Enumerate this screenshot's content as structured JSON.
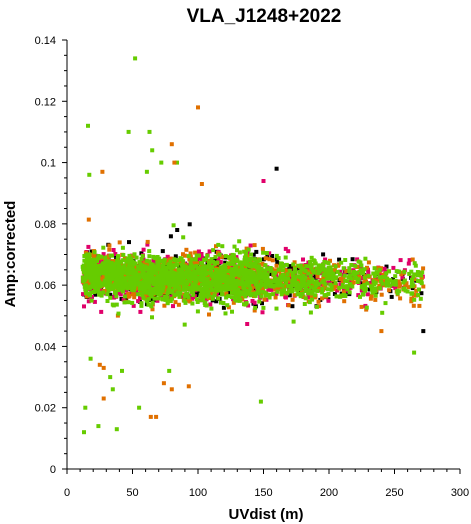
{
  "chart_data": {
    "type": "scatter",
    "title": "VLA_J1248+2022",
    "xlabel": "UVdist (m)",
    "ylabel": "Amp:corrected",
    "xlim": [
      0,
      300
    ],
    "ylim": [
      0,
      0.14
    ],
    "xticks": [
      "0",
      "50",
      "100",
      "150",
      "200",
      "250",
      "300"
    ],
    "yticks": [
      "0",
      "0.02",
      "0.04",
      "0.06",
      "0.08",
      "0.1",
      "0.12",
      "0.14"
    ],
    "series_colors": [
      "#000000",
      "#e0006a",
      "#e07000",
      "#66cc00"
    ],
    "grid": false,
    "legend": "none",
    "outliers": [
      {
        "x": 52,
        "y": 0.134,
        "color": "#66cc00"
      },
      {
        "x": 100,
        "y": 0.118,
        "color": "#e07000"
      },
      {
        "x": 16,
        "y": 0.112,
        "color": "#66cc00"
      },
      {
        "x": 47,
        "y": 0.11,
        "color": "#66cc00"
      },
      {
        "x": 63,
        "y": 0.11,
        "color": "#66cc00"
      },
      {
        "x": 80,
        "y": 0.106,
        "color": "#e07000"
      },
      {
        "x": 65,
        "y": 0.104,
        "color": "#66cc00"
      },
      {
        "x": 84,
        "y": 0.1,
        "color": "#66cc00"
      },
      {
        "x": 82,
        "y": 0.1,
        "color": "#e07000"
      },
      {
        "x": 72,
        "y": 0.1,
        "color": "#66cc00"
      },
      {
        "x": 27,
        "y": 0.097,
        "color": "#e07000"
      },
      {
        "x": 61,
        "y": 0.097,
        "color": "#66cc00"
      },
      {
        "x": 17,
        "y": 0.096,
        "color": "#66cc00"
      },
      {
        "x": 103,
        "y": 0.093,
        "color": "#e07000"
      },
      {
        "x": 160,
        "y": 0.098,
        "color": "#000000"
      },
      {
        "x": 150,
        "y": 0.094,
        "color": "#e0006a"
      },
      {
        "x": 14,
        "y": 0.02,
        "color": "#66cc00"
      },
      {
        "x": 13,
        "y": 0.012,
        "color": "#66cc00"
      },
      {
        "x": 24,
        "y": 0.014,
        "color": "#66cc00"
      },
      {
        "x": 38,
        "y": 0.013,
        "color": "#66cc00"
      },
      {
        "x": 64,
        "y": 0.017,
        "color": "#e07000"
      },
      {
        "x": 68,
        "y": 0.017,
        "color": "#e07000"
      },
      {
        "x": 55,
        "y": 0.02,
        "color": "#66cc00"
      },
      {
        "x": 28,
        "y": 0.023,
        "color": "#e07000"
      },
      {
        "x": 35,
        "y": 0.026,
        "color": "#66cc00"
      },
      {
        "x": 80,
        "y": 0.026,
        "color": "#e07000"
      },
      {
        "x": 93,
        "y": 0.027,
        "color": "#e07000"
      },
      {
        "x": 74,
        "y": 0.028,
        "color": "#e07000"
      },
      {
        "x": 33,
        "y": 0.03,
        "color": "#66cc00"
      },
      {
        "x": 148,
        "y": 0.022,
        "color": "#66cc00"
      },
      {
        "x": 28,
        "y": 0.033,
        "color": "#e07000"
      },
      {
        "x": 42,
        "y": 0.032,
        "color": "#66cc00"
      },
      {
        "x": 78,
        "y": 0.032,
        "color": "#66cc00"
      },
      {
        "x": 18,
        "y": 0.036,
        "color": "#66cc00"
      },
      {
        "x": 25,
        "y": 0.034,
        "color": "#e07000"
      },
      {
        "x": 265,
        "y": 0.038,
        "color": "#66cc00"
      },
      {
        "x": 272,
        "y": 0.045,
        "color": "#000000"
      },
      {
        "x": 240,
        "y": 0.045,
        "color": "#e07000"
      }
    ],
    "cloud": {
      "x_range": [
        12,
        272
      ],
      "y_center_at_x": [
        [
          15,
          0.064
        ],
        [
          60,
          0.062
        ],
        [
          150,
          0.062
        ],
        [
          270,
          0.061
        ]
      ],
      "y_spread": 0.008,
      "point_count": 3600
    }
  }
}
